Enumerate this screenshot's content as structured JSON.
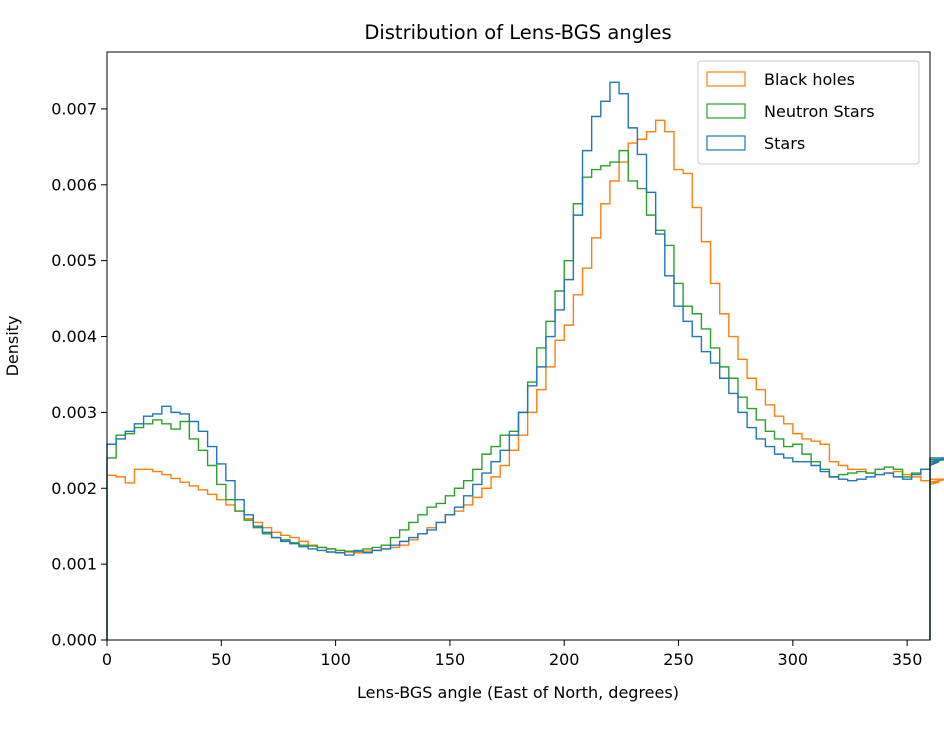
{
  "chart_data": {
    "type": "histogram",
    "title": "Distribution of Lens-BGS angles",
    "xlabel": "Lens-BGS angle (East of North, degrees)",
    "ylabel": "Density",
    "xlim": [
      0,
      360
    ],
    "ylim": [
      0,
      0.00775
    ],
    "xticks": [
      0,
      50,
      100,
      150,
      200,
      250,
      300,
      350
    ],
    "xtick_labels": [
      "0",
      "50",
      "100",
      "150",
      "200",
      "250",
      "300",
      "350"
    ],
    "yticks": [
      0,
      0.001,
      0.002,
      0.003,
      0.004,
      0.005,
      0.006,
      0.007
    ],
    "ytick_labels": [
      "0.000",
      "0.001",
      "0.002",
      "0.003",
      "0.004",
      "0.005",
      "0.006",
      "0.007"
    ],
    "grid": false,
    "legend_position": "top-right",
    "bin_width": 4,
    "series": [
      {
        "name": "Black holes",
        "color": "#ff7f0e",
        "values": [
          0.00217,
          0.00215,
          0.00207,
          0.00225,
          0.00225,
          0.00222,
          0.00218,
          0.00213,
          0.00208,
          0.00203,
          0.00198,
          0.00192,
          0.00185,
          0.00178,
          0.0017,
          0.0016,
          0.00155,
          0.00148,
          0.00142,
          0.00138,
          0.00135,
          0.0013,
          0.00125,
          0.00122,
          0.0012,
          0.00118,
          0.00116,
          0.00115,
          0.00117,
          0.00118,
          0.0012,
          0.00122,
          0.00125,
          0.00132,
          0.0014,
          0.00148,
          0.00155,
          0.00165,
          0.0017,
          0.00178,
          0.00188,
          0.002,
          0.00215,
          0.0023,
          0.0025,
          0.0027,
          0.003,
          0.0033,
          0.0036,
          0.00395,
          0.00415,
          0.00455,
          0.0049,
          0.0053,
          0.00575,
          0.00605,
          0.0063,
          0.00655,
          0.0066,
          0.0067,
          0.00685,
          0.0067,
          0.0062,
          0.00615,
          0.0057,
          0.00525,
          0.0047,
          0.0043,
          0.004,
          0.0037,
          0.00345,
          0.0033,
          0.0031,
          0.00295,
          0.00285,
          0.00272,
          0.00265,
          0.00262,
          0.00258,
          0.00235,
          0.0023,
          0.00225,
          0.00225,
          0.0022,
          0.00218,
          0.0022,
          0.00222,
          0.00218,
          0.00215,
          0.0021,
          0.00205,
          0.00208,
          0.00212
        ]
      },
      {
        "name": "Neutron Stars",
        "color": "#2ca02c",
        "values": [
          0.0024,
          0.0027,
          0.00272,
          0.0028,
          0.00285,
          0.0029,
          0.00285,
          0.00278,
          0.00288,
          0.00265,
          0.0025,
          0.0023,
          0.00205,
          0.00185,
          0.0017,
          0.00158,
          0.00148,
          0.0014,
          0.00135,
          0.00132,
          0.00128,
          0.00125,
          0.00124,
          0.00122,
          0.0012,
          0.00118,
          0.00117,
          0.00118,
          0.0012,
          0.00122,
          0.00125,
          0.00135,
          0.00145,
          0.00155,
          0.00165,
          0.00175,
          0.0018,
          0.0019,
          0.002,
          0.0021,
          0.00225,
          0.00245,
          0.00255,
          0.0027,
          0.00275,
          0.003,
          0.0034,
          0.00385,
          0.0042,
          0.0046,
          0.005,
          0.00575,
          0.0061,
          0.0062,
          0.00625,
          0.0063,
          0.00645,
          0.00605,
          0.00595,
          0.0056,
          0.0054,
          0.0052,
          0.0047,
          0.0044,
          0.0043,
          0.0041,
          0.00385,
          0.0036,
          0.00345,
          0.0032,
          0.00305,
          0.0029,
          0.00275,
          0.00265,
          0.00255,
          0.00258,
          0.00245,
          0.00235,
          0.00225,
          0.00215,
          0.00218,
          0.0022,
          0.00222,
          0.0022,
          0.00225,
          0.00228,
          0.00225,
          0.00215,
          0.0022,
          0.00225,
          0.00232,
          0.00235,
          0.00238
        ]
      },
      {
        "name": "Stars",
        "color": "#1f77b4",
        "values": [
          0.00258,
          0.00265,
          0.00275,
          0.00285,
          0.00295,
          0.00298,
          0.00308,
          0.003,
          0.00298,
          0.00288,
          0.00275,
          0.00255,
          0.00232,
          0.0021,
          0.00185,
          0.00165,
          0.0015,
          0.00142,
          0.00135,
          0.0013,
          0.00127,
          0.00123,
          0.0012,
          0.00118,
          0.00116,
          0.00115,
          0.00112,
          0.00117,
          0.00115,
          0.00118,
          0.0012,
          0.00125,
          0.0013,
          0.00135,
          0.0014,
          0.00145,
          0.00155,
          0.00165,
          0.00175,
          0.0019,
          0.00205,
          0.0022,
          0.00235,
          0.0025,
          0.0027,
          0.003,
          0.00335,
          0.0036,
          0.004,
          0.00435,
          0.00475,
          0.0056,
          0.00645,
          0.0069,
          0.0071,
          0.00735,
          0.0072,
          0.00675,
          0.0064,
          0.0059,
          0.00535,
          0.0048,
          0.0044,
          0.0042,
          0.004,
          0.0038,
          0.00365,
          0.00345,
          0.00325,
          0.003,
          0.0028,
          0.00265,
          0.00255,
          0.00245,
          0.0024,
          0.00235,
          0.00235,
          0.0023,
          0.00222,
          0.00215,
          0.00212,
          0.0021,
          0.00212,
          0.00215,
          0.00218,
          0.0022,
          0.00215,
          0.00212,
          0.00218,
          0.00225,
          0.0023,
          0.00235,
          0.0024
        ]
      }
    ]
  }
}
